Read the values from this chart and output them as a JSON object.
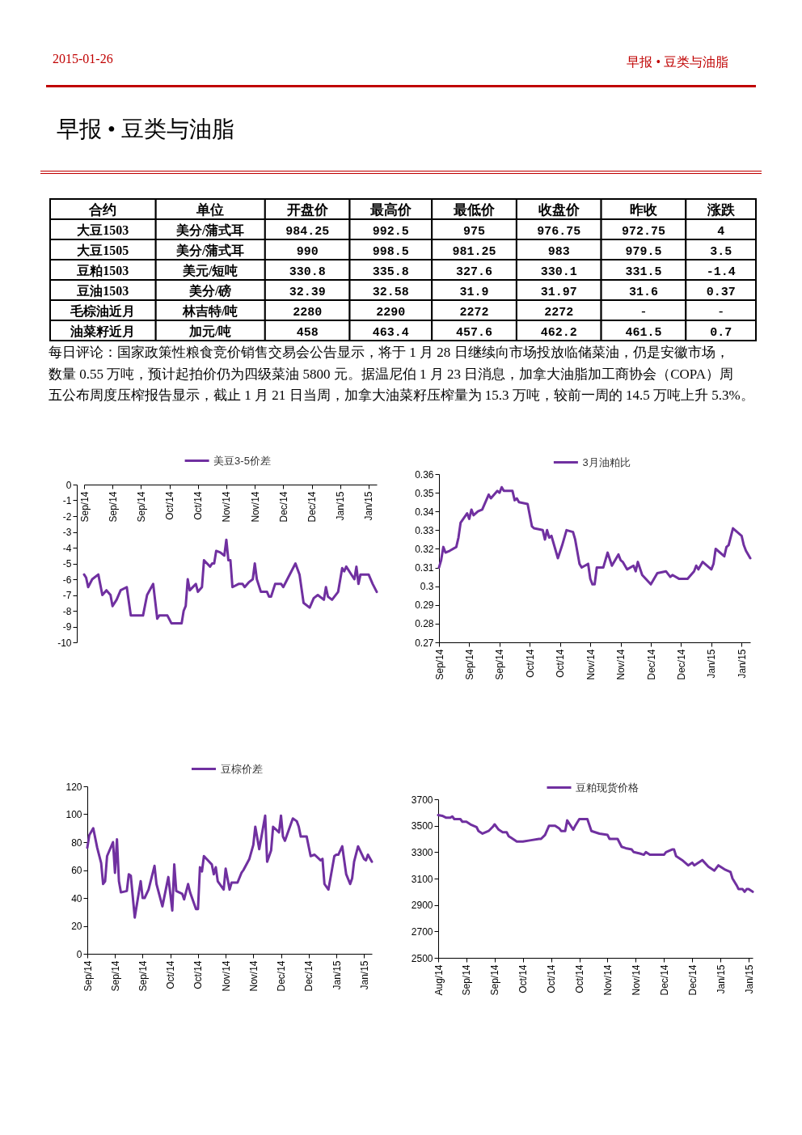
{
  "chart_data": [
    {
      "type": "other",
      "title": "早报 • 豆类与油脂",
      "annotations": [
        "2015-01-26",
        "早报 • 豆类与油脂",
        "每日评论：国家政策性粮食竞价销售交易会公告显示，将于 1 月 28 日继续向市场投放临储菜油，仍是安徽市场，数量 0.55 万吨，预计起拍价仍为四级菜油 5800 元。据温尼伯 1 月 23 日消息，加拿大油脂加工商协会（COPA）周五公布周度压榨报告显示，截止 1 月 21 日当周，加拿大油菜籽压榨量为 15.3 万吨，较前一周的 14.5 万吨上升 5.3%。"
      ],
      "categories": [
        "合约",
        "单位",
        "开盘价",
        "最高价",
        "最低价",
        "收盘价",
        "昨收",
        "涨跌"
      ],
      "cell_labels": [
        [
          "大豆1503",
          "美分/蒲式耳",
          "984.25",
          "992.5",
          "975",
          "976.75",
          "972.75",
          "4"
        ],
        [
          "大豆1505",
          "美分/蒲式耳",
          "990",
          "998.5",
          "981.25",
          "983",
          "979.5",
          "3.5"
        ],
        [
          "豆粕1503",
          "美元/短吨",
          "330.8",
          "335.8",
          "327.6",
          "330.1",
          "331.5",
          "-1.4"
        ],
        [
          "豆油1503",
          "美分/磅",
          "32.39",
          "32.58",
          "31.9",
          "31.97",
          "31.6",
          "0.37"
        ],
        [
          "毛棕油近月",
          "林吉特/吨",
          "2280",
          "2290",
          "2272",
          "2272",
          "-",
          "-"
        ],
        [
          "油菜籽近月",
          "加元/吨",
          "458",
          "463.4",
          "457.6",
          "462.2",
          "461.5",
          "0.7"
        ]
      ]
    },
    {
      "type": "line",
      "x": [
        "2014-09-01",
        "2014-09-02",
        "2014-09-03",
        "2014-09-05",
        "2014-09-08",
        "2014-09-10",
        "2014-09-12",
        "2014-09-14",
        "2014-09-15",
        "2014-09-17",
        "2014-09-19",
        "2014-09-22",
        "2014-09-23",
        "2014-09-24",
        "2014-09-30",
        "2014-10-02",
        "2014-10-05",
        "2014-10-06",
        "2014-10-07",
        "2014-10-08",
        "2014-10-12",
        "2014-10-14",
        "2014-10-19",
        "2014-10-20",
        "2014-10-21",
        "2014-10-22",
        "2014-10-23",
        "2014-10-26",
        "2014-10-27",
        "2014-10-29",
        "2014-10-30",
        "2014-11-02",
        "2014-11-03",
        "2014-11-04",
        "2014-11-05",
        "2014-11-07",
        "2014-11-09",
        "2014-11-10",
        "2014-11-11",
        "2014-11-12",
        "2014-11-13",
        "2014-11-16",
        "2014-11-18",
        "2014-11-19",
        "2014-11-21",
        "2014-11-23",
        "2014-11-24",
        "2014-11-25",
        "2014-11-27",
        "2014-11-30",
        "2014-12-01",
        "2014-12-02",
        "2014-12-04",
        "2014-12-07",
        "2014-12-08",
        "2014-12-10",
        "2014-12-14",
        "2014-12-16",
        "2014-12-18",
        "2014-12-21",
        "2014-12-23",
        "2014-12-25",
        "2014-12-28",
        "2014-12-29",
        "2014-12-30",
        "2015-01-01",
        "2015-01-04",
        "2015-01-06",
        "2015-01-07",
        "2015-01-08",
        "2015-01-10",
        "2015-01-12",
        "2015-01-13",
        "2015-01-14",
        "2015-01-15",
        "2015-01-19",
        "2015-01-21",
        "2015-01-23"
      ],
      "series": [
        {
          "name": "美豆3-5价差",
          "color": "#7030a0",
          "values": [
            -5.7,
            -5.9,
            -6.5,
            -6,
            -5.7,
            -7,
            -6.7,
            -7,
            -7.7,
            -7.3,
            -6.7,
            -6.5,
            -7.4,
            -8.3,
            -8.3,
            -7,
            -6.3,
            -7.4,
            -8.5,
            -8.3,
            -8.3,
            -8.8,
            -8.8,
            -8,
            -7.7,
            -6,
            -6.7,
            -6.3,
            -6.8,
            -6.5,
            -4.8,
            -5.2,
            -5,
            -5,
            -4.2,
            -4.3,
            -4.5,
            -3.5,
            -4.8,
            -4.8,
            -6.5,
            -6.3,
            -6.3,
            -6.5,
            -6.2,
            -6,
            -5,
            -6,
            -6.8,
            -6.8,
            -7.1,
            -7.1,
            -6.3,
            -6.3,
            -6.5,
            -6,
            -5,
            -5.7,
            -7.5,
            -7.8,
            -7.2,
            -7,
            -7.3,
            -6.5,
            -7.1,
            -7.3,
            -6.8,
            -5.3,
            -5.5,
            -5.2,
            -5.6,
            -6,
            -5.2,
            -6.3,
            -5.7,
            -5.7,
            -6.3,
            -6.8
          ]
        }
      ],
      "xlim": [
        "2014-09-01",
        "2015-01-23"
      ],
      "xticks": [
        {
          "value": "2014-09-01",
          "label": "Sep/14"
        },
        {
          "value": "2014-09-15",
          "label": "Sep/14"
        },
        {
          "value": "2014-09-29",
          "label": "Sep/14"
        },
        {
          "value": "2014-10-13",
          "label": "Oct/14"
        },
        {
          "value": "2014-10-27",
          "label": "Oct/14"
        },
        {
          "value": "2014-11-10",
          "label": "Nov/14"
        },
        {
          "value": "2014-11-24",
          "label": "Nov/14"
        },
        {
          "value": "2014-12-08",
          "label": "Dec/14"
        },
        {
          "value": "2014-12-22",
          "label": "Dec/14"
        },
        {
          "value": "2015-01-05",
          "label": "Jan/15"
        },
        {
          "value": "2015-01-19",
          "label": "Jan/15"
        }
      ],
      "ylim": [
        -10,
        0
      ],
      "yticks": [
        -10,
        -9,
        -8,
        -7,
        -6,
        -5,
        -4,
        -3,
        -2,
        -1,
        0
      ],
      "legend": "top"
    },
    {
      "type": "line",
      "x": [
        "2014-09-01",
        "2014-09-02",
        "2014-09-03",
        "2014-09-04",
        "2014-09-06",
        "2014-09-09",
        "2014-09-10",
        "2014-09-11",
        "2014-09-14",
        "2014-09-15",
        "2014-09-16",
        "2014-09-17",
        "2014-09-19",
        "2014-09-21",
        "2014-09-24",
        "2014-09-25",
        "2014-09-28",
        "2014-09-29",
        "2014-09-30",
        "2014-10-01",
        "2014-10-05",
        "2014-10-06",
        "2014-10-07",
        "2014-10-08",
        "2014-10-12",
        "2014-10-14",
        "2014-10-15",
        "2014-10-19",
        "2014-10-20",
        "2014-10-21",
        "2014-10-22",
        "2014-10-23",
        "2014-10-26",
        "2014-10-28",
        "2014-10-30",
        "2014-11-02",
        "2014-11-03",
        "2014-11-05",
        "2014-11-06",
        "2014-11-09",
        "2014-11-10",
        "2014-11-11",
        "2014-11-12",
        "2014-11-13",
        "2014-11-16",
        "2014-11-18",
        "2014-11-20",
        "2014-11-23",
        "2014-11-24",
        "2014-11-25",
        "2014-11-27",
        "2014-11-30",
        "2014-12-01",
        "2014-12-02",
        "2014-12-04",
        "2014-12-08",
        "2014-12-09",
        "2014-12-11",
        "2014-12-15",
        "2014-12-17",
        "2014-12-18",
        "2014-12-21",
        "2014-12-25",
        "2014-12-28",
        "2014-12-29",
        "2014-12-30",
        "2015-01-01",
        "2015-01-05",
        "2015-01-06",
        "2015-01-07",
        "2015-01-08",
        "2015-01-11",
        "2015-01-12",
        "2015-01-13",
        "2015-01-15",
        "2015-01-19",
        "2015-01-20",
        "2015-01-21",
        "2015-01-23"
      ],
      "series": [
        {
          "name": "3月油粕比",
          "color": "#7030a0",
          "values": [
            0.31,
            0.314,
            0.321,
            0.318,
            0.319,
            0.321,
            0.326,
            0.334,
            0.339,
            0.336,
            0.341,
            0.338,
            0.34,
            0.341,
            0.349,
            0.347,
            0.351,
            0.35,
            0.353,
            0.351,
            0.351,
            0.346,
            0.347,
            0.345,
            0.344,
            0.332,
            0.331,
            0.33,
            0.325,
            0.33,
            0.326,
            0.327,
            0.315,
            0.322,
            0.33,
            0.329,
            0.325,
            0.312,
            0.31,
            0.312,
            0.304,
            0.301,
            0.301,
            0.31,
            0.31,
            0.318,
            0.311,
            0.317,
            0.314,
            0.313,
            0.309,
            0.311,
            0.308,
            0.313,
            0.306,
            0.301,
            0.303,
            0.307,
            0.308,
            0.305,
            0.306,
            0.304,
            0.304,
            0.308,
            0.311,
            0.309,
            0.313,
            0.309,
            0.312,
            0.32,
            0.319,
            0.316,
            0.321,
            0.322,
            0.331,
            0.327,
            0.322,
            0.319,
            0.315
          ]
        }
      ],
      "xlim": [
        "2014-09-01",
        "2015-01-23"
      ],
      "xticks": [
        {
          "value": "2014-09-01",
          "label": "Sep/14"
        },
        {
          "value": "2014-09-15",
          "label": "Sep/14"
        },
        {
          "value": "2014-09-29",
          "label": "Sep/14"
        },
        {
          "value": "2014-10-13",
          "label": "Oct/14"
        },
        {
          "value": "2014-10-27",
          "label": "Oct/14"
        },
        {
          "value": "2014-11-10",
          "label": "Nov/14"
        },
        {
          "value": "2014-11-24",
          "label": "Nov/14"
        },
        {
          "value": "2014-12-08",
          "label": "Dec/14"
        },
        {
          "value": "2014-12-22",
          "label": "Dec/14"
        },
        {
          "value": "2015-01-05",
          "label": "Jan/15"
        },
        {
          "value": "2015-01-19",
          "label": "Jan/15"
        }
      ],
      "ylim": [
        0.27,
        0.36
      ],
      "yticks": [
        0.27,
        0.28,
        0.29,
        0.3,
        0.31,
        0.32,
        0.33,
        0.34,
        0.35,
        0.36
      ],
      "legend": "top"
    },
    {
      "type": "line",
      "x": [
        "2014-09-01",
        "2014-09-02",
        "2014-09-04",
        "2014-09-06",
        "2014-09-08",
        "2014-09-09",
        "2014-09-10",
        "2014-09-11",
        "2014-09-14",
        "2014-09-15",
        "2014-09-16",
        "2014-09-17",
        "2014-09-18",
        "2014-09-21",
        "2014-09-22",
        "2014-09-23",
        "2014-09-25",
        "2014-09-28",
        "2014-09-29",
        "2014-09-30",
        "2014-10-02",
        "2014-10-05",
        "2014-10-06",
        "2014-10-09",
        "2014-10-12",
        "2014-10-14",
        "2014-10-15",
        "2014-10-16",
        "2014-10-19",
        "2014-10-20",
        "2014-10-22",
        "2014-10-23",
        "2014-10-26",
        "2014-10-27",
        "2014-10-28",
        "2014-10-29",
        "2014-10-30",
        "2014-11-03",
        "2014-11-04",
        "2014-11-05",
        "2014-11-06",
        "2014-11-09",
        "2014-11-10",
        "2014-11-12",
        "2014-11-13",
        "2014-11-16",
        "2014-11-18",
        "2014-11-19",
        "2014-11-22",
        "2014-11-24",
        "2014-11-25",
        "2014-11-27",
        "2014-11-30",
        "2014-12-01",
        "2014-12-03",
        "2014-12-04",
        "2014-12-07",
        "2014-12-08",
        "2014-12-09",
        "2014-12-10",
        "2014-12-12",
        "2014-12-14",
        "2014-12-16",
        "2014-12-17",
        "2014-12-18",
        "2014-12-21",
        "2014-12-23",
        "2014-12-25",
        "2014-12-28",
        "2014-12-29",
        "2014-12-30",
        "2015-01-01",
        "2015-01-04",
        "2015-01-05",
        "2015-01-06",
        "2015-01-08",
        "2015-01-10",
        "2015-01-12",
        "2015-01-13",
        "2015-01-14",
        "2015-01-16",
        "2015-01-19",
        "2015-01-20",
        "2015-01-21",
        "2015-01-23"
      ],
      "series": [
        {
          "name": "豆棕价差",
          "color": "#7030a0",
          "values": [
            76,
            85,
            90,
            76,
            65,
            50,
            52,
            70,
            80,
            58,
            82,
            52,
            44,
            45,
            57,
            56,
            26,
            52,
            40,
            40,
            46,
            63,
            50,
            34,
            55,
            31,
            64,
            45,
            43,
            39,
            50,
            44,
            32,
            32,
            62,
            59,
            70,
            64,
            57,
            62,
            52,
            46,
            61,
            46,
            51,
            51,
            58,
            60,
            68,
            78,
            91,
            75,
            99,
            66,
            74,
            91,
            87,
            99,
            84,
            81,
            89,
            97,
            95,
            91,
            84,
            84,
            70,
            71,
            67,
            68,
            50,
            46,
            70,
            71,
            71,
            77,
            57,
            50,
            54,
            66,
            77,
            68,
            67,
            71,
            66
          ]
        }
      ],
      "xlim": [
        "2014-09-01",
        "2015-01-23"
      ],
      "xticks": [
        {
          "value": "2014-09-01",
          "label": "Sep/14"
        },
        {
          "value": "2014-09-15",
          "label": "Sep/14"
        },
        {
          "value": "2014-09-29",
          "label": "Sep/14"
        },
        {
          "value": "2014-10-13",
          "label": "Oct/14"
        },
        {
          "value": "2014-10-27",
          "label": "Oct/14"
        },
        {
          "value": "2014-11-10",
          "label": "Nov/14"
        },
        {
          "value": "2014-11-24",
          "label": "Nov/14"
        },
        {
          "value": "2014-12-08",
          "label": "Dec/14"
        },
        {
          "value": "2014-12-22",
          "label": "Dec/14"
        },
        {
          "value": "2015-01-05",
          "label": "Jan/15"
        },
        {
          "value": "2015-01-19",
          "label": "Jan/15"
        }
      ],
      "ylim": [
        0,
        120
      ],
      "yticks": [
        0,
        20,
        40,
        60,
        80,
        100,
        120
      ],
      "legend": "top"
    },
    {
      "type": "line",
      "x": [
        "2014-08-22",
        "2014-08-24",
        "2014-08-26",
        "2014-08-28",
        "2014-08-29",
        "2014-08-30",
        "2014-09-02",
        "2014-09-03",
        "2014-09-05",
        "2014-09-07",
        "2014-09-10",
        "2014-09-11",
        "2014-09-13",
        "2014-09-16",
        "2014-09-18",
        "2014-09-19",
        "2014-09-21",
        "2014-09-23",
        "2014-09-25",
        "2014-09-26",
        "2014-09-27",
        "2014-09-30",
        "2014-10-03",
        "2014-10-07",
        "2014-10-11",
        "2014-10-12",
        "2014-10-14",
        "2014-10-16",
        "2014-10-19",
        "2014-10-21",
        "2014-10-22",
        "2014-10-24",
        "2014-10-25",
        "2014-10-28",
        "2014-10-29",
        "2014-10-31",
        "2014-11-04",
        "2014-11-06",
        "2014-11-10",
        "2014-11-14",
        "2014-11-15",
        "2014-11-19",
        "2014-11-21",
        "2014-11-23",
        "2014-11-26",
        "2014-11-27",
        "2014-11-30",
        "2014-12-02",
        "2014-12-03",
        "2014-12-05",
        "2014-12-12",
        "2014-12-13",
        "2014-12-16",
        "2014-12-17",
        "2014-12-18",
        "2014-12-21",
        "2014-12-24",
        "2014-12-26",
        "2014-12-27",
        "2014-12-31",
        "2015-01-03",
        "2015-01-06",
        "2015-01-08",
        "2015-01-11",
        "2015-01-14",
        "2015-01-15",
        "2015-01-17",
        "2015-01-18",
        "2015-01-20",
        "2015-01-21",
        "2015-01-22",
        "2015-01-23",
        "2015-01-25"
      ],
      "series": [
        {
          "name": "豆粕现货价格",
          "color": "#7030a0",
          "values": [
            3580,
            3575,
            3560,
            3560,
            3570,
            3550,
            3550,
            3530,
            3530,
            3510,
            3490,
            3460,
            3440,
            3460,
            3490,
            3510,
            3470,
            3450,
            3450,
            3420,
            3410,
            3380,
            3380,
            3390,
            3400,
            3400,
            3430,
            3500,
            3500,
            3480,
            3460,
            3460,
            3540,
            3470,
            3500,
            3550,
            3550,
            3460,
            3440,
            3430,
            3400,
            3400,
            3340,
            3330,
            3320,
            3300,
            3290,
            3280,
            3300,
            3280,
            3280,
            3300,
            3320,
            3320,
            3270,
            3240,
            3200,
            3220,
            3200,
            3240,
            3190,
            3160,
            3200,
            3170,
            3150,
            3100,
            3050,
            3020,
            3020,
            3000,
            3020,
            3020,
            3000
          ]
        }
      ],
      "xlim": [
        "2014-08-22",
        "2015-01-25"
      ],
      "xticks": [
        {
          "value": "2014-08-22",
          "label": "Aug/14"
        },
        {
          "value": "2014-09-05",
          "label": "Sep/14"
        },
        {
          "value": "2014-09-19",
          "label": "Sep/14"
        },
        {
          "value": "2014-10-03",
          "label": "Oct/14"
        },
        {
          "value": "2014-10-17",
          "label": "Oct/14"
        },
        {
          "value": "2014-10-31",
          "label": "Oct/14"
        },
        {
          "value": "2014-11-14",
          "label": "Nov/14"
        },
        {
          "value": "2014-11-28",
          "label": "Nov/14"
        },
        {
          "value": "2014-12-12",
          "label": "Dec/14"
        },
        {
          "value": "2014-12-26",
          "label": "Dec/14"
        },
        {
          "value": "2015-01-09",
          "label": "Jan/15"
        },
        {
          "value": "2015-01-23",
          "label": "Jan/15"
        }
      ],
      "ylim": [
        2500,
        3700
      ],
      "yticks": [
        2500,
        2700,
        2900,
        3100,
        3300,
        3500,
        3700
      ],
      "legend": "top"
    }
  ]
}
